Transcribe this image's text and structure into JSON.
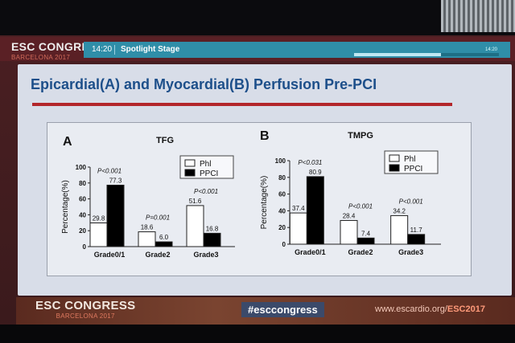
{
  "header": {
    "brand": "ESC CONGRESS",
    "brand_sub": "BARCELONA 2017",
    "time": "14:20",
    "stage": "Spotlight Stage",
    "clock": "14:20",
    "progress": 0.6
  },
  "slide": {
    "title": "Epicardial(A) and Myocardial(B) Perfusion Pre-PCI"
  },
  "footer": {
    "brand": "ESC CONGRESS",
    "brand_sub": "BARCELONA 2017",
    "hashtag": "#esccongress",
    "site_prefix": "www.escardio.org/",
    "site_suffix": "ESC2017"
  },
  "colors": {
    "slide_title": "#1d4f8a",
    "title_rule": "#b3262b",
    "stage_bar": "#2f8ea8",
    "series_phi": "#ffffff",
    "series_ppci": "#000000"
  },
  "chart_data": [
    {
      "type": "bar",
      "panel_label": "A",
      "title": "TFG",
      "ylabel": "Percentage(%)",
      "ylim": [
        0,
        100
      ],
      "yticks": [
        0,
        20,
        40,
        60,
        80,
        100
      ],
      "categories": [
        "Grade0/1",
        "Grade2",
        "Grade3"
      ],
      "series": [
        {
          "name": "Phl",
          "values": [
            29.8,
            18.6,
            51.6
          ],
          "labels": [
            "29.8",
            "18.6",
            "51.6"
          ]
        },
        {
          "name": "PPCI",
          "values": [
            77.3,
            6.0,
            16.8
          ],
          "labels": [
            "77.3",
            "6.0",
            "16.8"
          ]
        }
      ],
      "pvalues": [
        "P<0.001",
        "P=0.001",
        "P<0.001"
      ],
      "legend": "top-right"
    },
    {
      "type": "bar",
      "panel_label": "B",
      "title": "TMPG",
      "ylabel": "Percentage(%)",
      "ylim": [
        0,
        100
      ],
      "yticks": [
        0,
        20,
        40,
        60,
        80,
        100
      ],
      "categories": [
        "Grade0/1",
        "Grade2",
        "Grade3"
      ],
      "series": [
        {
          "name": "Phl",
          "values": [
            37.4,
            28.4,
            34.2
          ],
          "labels": [
            "37.4",
            "28.4",
            "34.2"
          ]
        },
        {
          "name": "PPCI",
          "values": [
            80.9,
            7.4,
            11.7
          ],
          "labels": [
            "80.9",
            "7.4",
            "11.7"
          ]
        }
      ],
      "pvalues": [
        "P<0.031",
        "P<0.001",
        "P<0.001"
      ],
      "legend": "top-right"
    }
  ]
}
